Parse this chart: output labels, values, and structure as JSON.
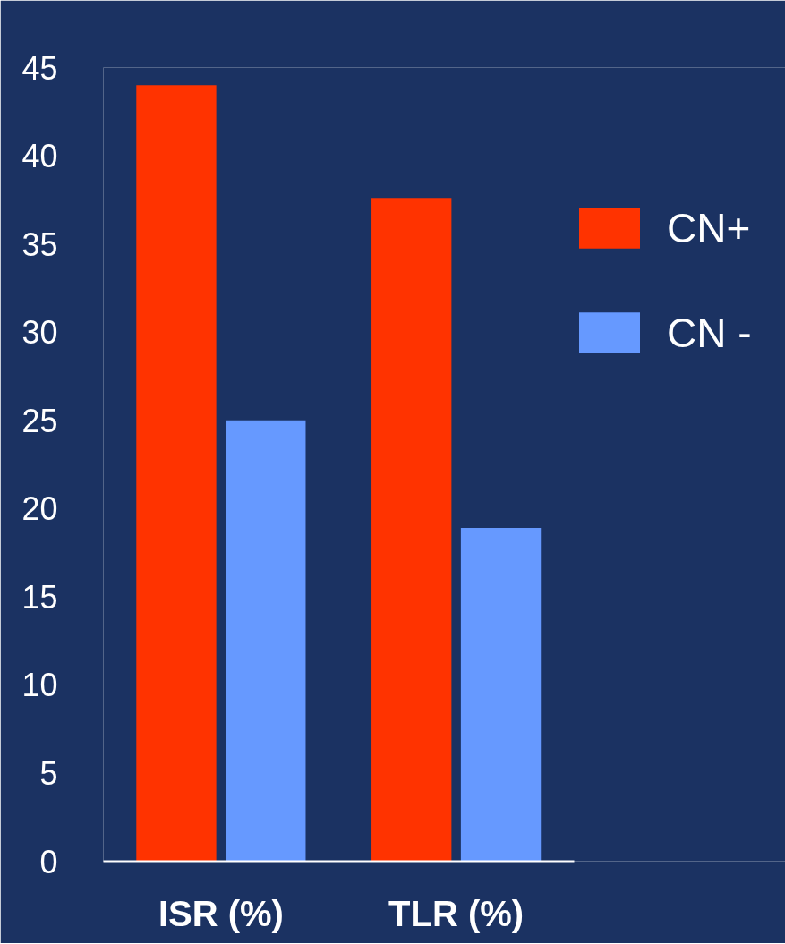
{
  "chart_data": {
    "type": "bar",
    "categories": [
      "ISR (%)",
      "TLR (%)"
    ],
    "series": [
      {
        "name": "CN+",
        "color": "#ff3300",
        "values": [
          44,
          37.6
        ]
      },
      {
        "name": "CN -",
        "color": "#6699ff",
        "values": [
          25,
          18.9
        ]
      }
    ],
    "ylim": [
      0,
      45
    ],
    "yticks": [
      0,
      5,
      10,
      15,
      20,
      25,
      30,
      35,
      40,
      45
    ],
    "grid": false,
    "legend": "right"
  }
}
